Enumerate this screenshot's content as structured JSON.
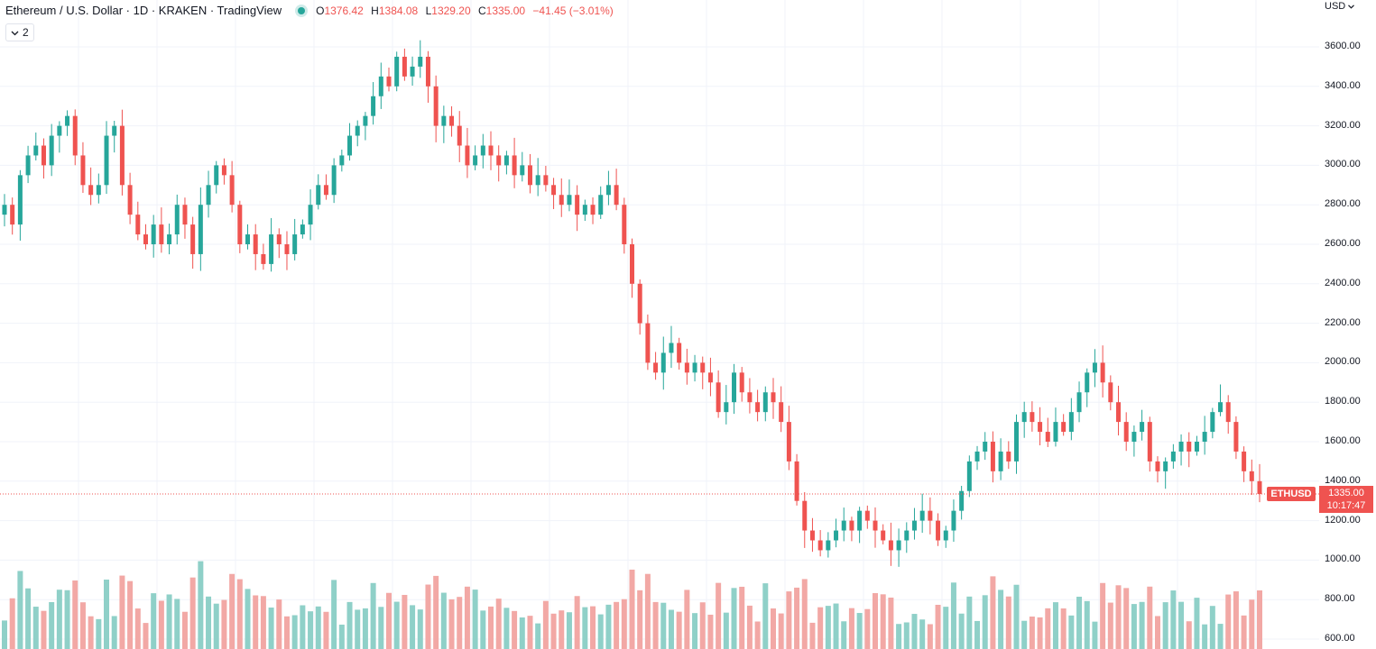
{
  "legend": {
    "symbol_title": "Ethereum / U.S. Dollar · 1D · KRAKEN · TradingView",
    "open_key": "O",
    "open": "1376.42",
    "high_key": "H",
    "high": "1384.08",
    "low_key": "L",
    "low": "1329.20",
    "close_key": "C",
    "close": "1335.00",
    "change": "−41.45 (−3.01%)"
  },
  "indicators_button": {
    "label": "2"
  },
  "price_axis": {
    "currency": "USD",
    "ticks": [
      "3600.00",
      "3400.00",
      "3200.00",
      "3000.00",
      "2800.00",
      "2600.00",
      "2400.00",
      "2200.00",
      "2000.00",
      "1800.00",
      "1600.00",
      "1400.00",
      "1200.00",
      "1000.00",
      "800.00",
      "600.00"
    ]
  },
  "last_price": {
    "value": "1335.00",
    "countdown": "10:17:47",
    "symbol": "ETHUSD"
  },
  "colors": {
    "up": "#26a69a",
    "down": "#ef5350",
    "up_volume": "#8fd0c8",
    "down_volume": "#f2a8a5",
    "grid": "#f0f3fa"
  },
  "chart_data": {
    "type": "candlestick",
    "y_range": [
      580,
      3700
    ],
    "price_series_closes": [
      2800,
      2700,
      2950,
      3050,
      3100,
      3000,
      3150,
      3200,
      3250,
      3050,
      2900,
      2850,
      2900,
      3150,
      3200,
      2900,
      2750,
      2650,
      2600,
      2700,
      2600,
      2650,
      2800,
      2700,
      2550,
      2800,
      2900,
      3000,
      2950,
      2800,
      2600,
      2650,
      2550,
      2500,
      2650,
      2600,
      2550,
      2650,
      2700,
      2800,
      2900,
      2850,
      3000,
      3050,
      3150,
      3200,
      3250,
      3350,
      3450,
      3400,
      3550,
      3450,
      3500,
      3550,
      3400,
      3200,
      3250,
      3200,
      3100,
      3000,
      3050,
      3100,
      3050,
      3000,
      3050,
      2950,
      3000,
      2900,
      2950,
      2900,
      2850,
      2800,
      2850,
      2750,
      2800,
      2750,
      2850,
      2900,
      2800,
      2600,
      2400,
      2200,
      2000,
      1950,
      2050,
      2100,
      2000,
      1950,
      2000,
      1950,
      1900,
      1750,
      1800,
      1950,
      1850,
      1800,
      1750,
      1850,
      1800,
      1700,
      1500,
      1300,
      1150,
      1100,
      1050,
      1100,
      1150,
      1200,
      1150,
      1250,
      1200,
      1150,
      1100,
      1050,
      1100,
      1150,
      1200,
      1250,
      1200,
      1100,
      1150,
      1250,
      1350,
      1500,
      1550,
      1600,
      1450,
      1550,
      1500,
      1700,
      1750,
      1700,
      1650,
      1600,
      1700,
      1650,
      1750,
      1850,
      1950,
      2000,
      1900,
      1800,
      1700,
      1600,
      1650,
      1700,
      1500,
      1450,
      1500,
      1550,
      1600,
      1550,
      1600,
      1650,
      1750,
      1800,
      1700,
      1550,
      1450,
      1400,
      1335
    ],
    "volume_axis_note": "volume histogram overlaid along bottom"
  }
}
